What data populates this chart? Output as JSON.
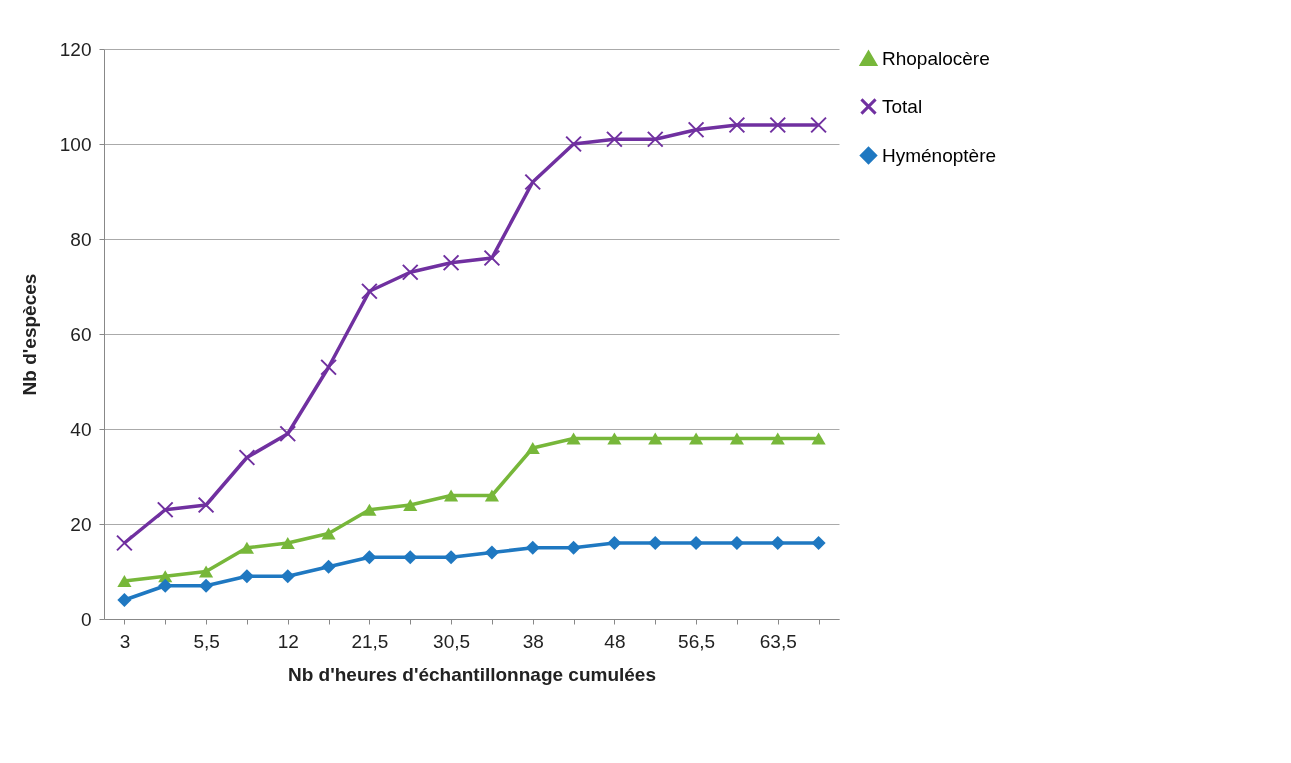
{
  "chart_data": {
    "type": "line",
    "xlabel": "Nb d'heures d'échantillonnage cumulées",
    "ylabel": "Nb d'espèces",
    "categories": [
      "3",
      null,
      "5,5",
      null,
      "12",
      null,
      "21,5",
      null,
      "30,5",
      null,
      "38",
      null,
      "48",
      null,
      "56,5",
      null,
      "63,5",
      null
    ],
    "series": [
      {
        "name": "Rhopalocère",
        "color": "#77b73a",
        "marker": "triangle",
        "values": [
          8,
          9,
          10,
          15,
          16,
          18,
          23,
          24,
          26,
          26,
          36,
          38,
          38,
          38,
          38,
          38,
          38,
          38
        ]
      },
      {
        "name": "Total",
        "color": "#7030a0",
        "marker": "cross",
        "values": [
          16,
          23,
          24,
          34,
          39,
          53,
          69,
          73,
          75,
          76,
          92,
          100,
          101,
          101,
          103,
          104,
          104,
          104
        ]
      },
      {
        "name": "Hyménoptère",
        "color": "#1f78c1",
        "marker": "diamond",
        "values": [
          4,
          7,
          7,
          9,
          9,
          11,
          13,
          13,
          13,
          14,
          15,
          15,
          16,
          16,
          16,
          16,
          16,
          16
        ]
      }
    ],
    "ylim": [
      0,
      120
    ],
    "yticks": [
      0,
      20,
      40,
      60,
      80,
      100,
      120
    ],
    "grid": "y",
    "legend": "right"
  }
}
